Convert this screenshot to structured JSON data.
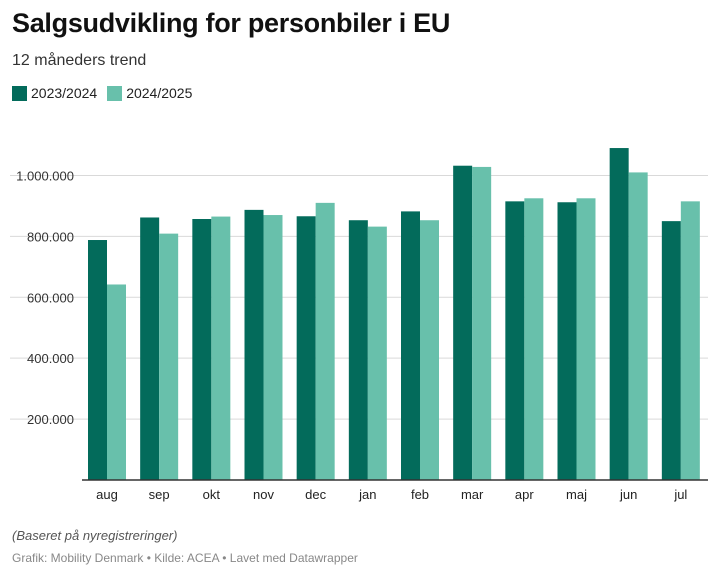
{
  "chart_data": {
    "type": "bar",
    "title": "Salgsudvikling for personbiler i EU",
    "subtitle": "12 måneders trend",
    "categories": [
      "aug",
      "sep",
      "okt",
      "nov",
      "dec",
      "jan",
      "feb",
      "mar",
      "apr",
      "maj",
      "jun",
      "jul"
    ],
    "series": [
      {
        "name": "2023/2024",
        "color": "#036b5b",
        "values": [
          788000,
          862000,
          857000,
          887000,
          866000,
          853000,
          882000,
          1032000,
          915000,
          912000,
          1090000,
          850000
        ]
      },
      {
        "name": "2024/2025",
        "color": "#68c0ab",
        "values": [
          642000,
          809000,
          865000,
          870000,
          910000,
          832000,
          853000,
          1028000,
          925000,
          925000,
          1010000,
          915000
        ]
      }
    ],
    "ylim": [
      0,
      1100000
    ],
    "yticks": [
      200000,
      400000,
      600000,
      800000,
      1000000
    ],
    "ytick_labels": [
      "200.000",
      "400.000",
      "600.000",
      "800.000",
      "1.000.000"
    ],
    "grid": true,
    "legend_position": "top-left",
    "xlabel": "",
    "ylabel": ""
  },
  "note": "(Baseret på nyregistreringer)",
  "credits": "Grafik: Mobility Denmark • Kilde: ACEA • Lavet med Datawrapper"
}
